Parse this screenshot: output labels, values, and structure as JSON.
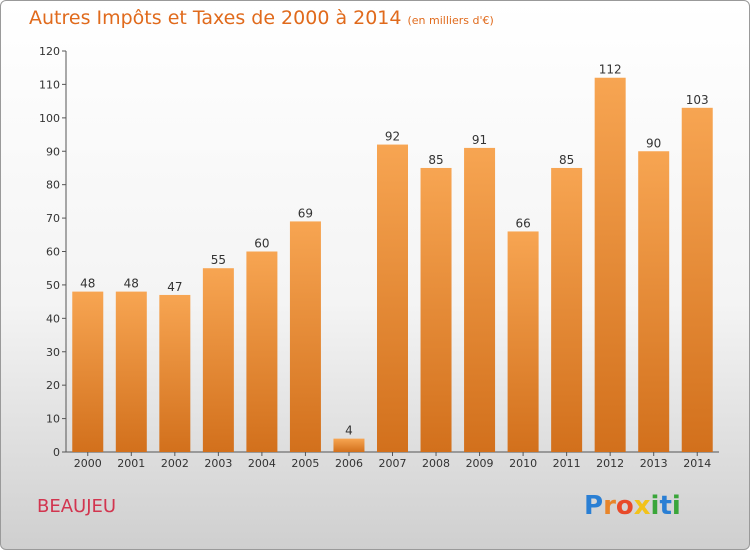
{
  "chart_data": {
    "type": "bar",
    "title": "Autres Impôts et Taxes de 2000 à 2014",
    "subtitle": "(en milliers d'€)",
    "categories": [
      "2000",
      "2001",
      "2002",
      "2003",
      "2004",
      "2005",
      "2006",
      "2007",
      "2008",
      "2009",
      "2010",
      "2011",
      "2012",
      "2013",
      "2014"
    ],
    "values": [
      48,
      48,
      47,
      55,
      60,
      69,
      4,
      92,
      85,
      91,
      66,
      85,
      112,
      90,
      103
    ],
    "yticks": [
      0,
      10,
      20,
      30,
      40,
      50,
      60,
      70,
      80,
      90,
      100,
      110,
      120
    ],
    "ylim": [
      0,
      120
    ],
    "grid": false,
    "bar_color_top": "#f7a552",
    "bar_color_bottom": "#d2701c"
  },
  "commune": "BEAUJEU",
  "logo": {
    "letters": [
      "P",
      "r",
      "o",
      "x",
      "i",
      "t",
      "i"
    ],
    "colors": [
      "#2a7fd4",
      "#e8852a",
      "#e84a2a",
      "#f2c21a",
      "#3aa63a",
      "#2a7fd4",
      "#3aa63a"
    ]
  }
}
